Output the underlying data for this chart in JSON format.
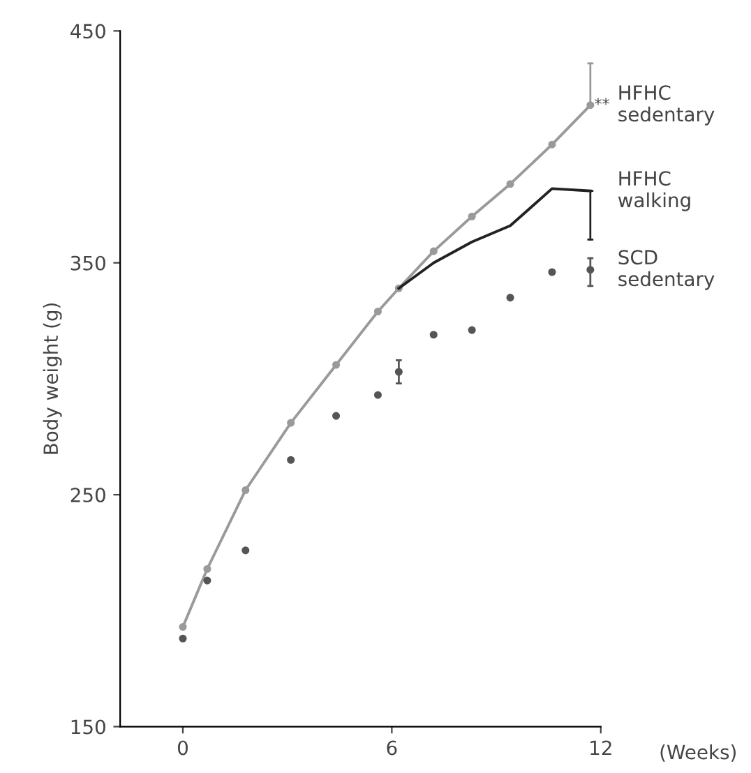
{
  "chart_data": {
    "type": "line",
    "ylabel": "Body weight (g)",
    "xlabel": "(Weeks)",
    "xlim": [
      -1.8,
      12
    ],
    "ylim": [
      150,
      450
    ],
    "xticks": [
      0,
      6,
      12
    ],
    "yticks": [
      150,
      250,
      350,
      450
    ],
    "grid": false,
    "legend": false,
    "series": [
      {
        "name": "HFHC sedentary",
        "marker": "circle",
        "color": "#9a9a9a",
        "x": [
          0,
          0.7,
          1.8,
          3.1,
          4.4,
          5.6,
          6.2,
          7.2,
          8.3,
          9.4,
          10.6,
          11.7
        ],
        "values": [
          193,
          218,
          252,
          281,
          306,
          329,
          339,
          355,
          370,
          384,
          401,
          418
        ],
        "errors": [
          null,
          null,
          null,
          null,
          null,
          null,
          null,
          null,
          null,
          null,
          null,
          [
            418,
            436
          ]
        ]
      },
      {
        "name": "HFHC walking",
        "marker": "none",
        "color": "#222222",
        "x": [
          6.2,
          7.2,
          8.3,
          9.4,
          10.6,
          11.7
        ],
        "values": [
          339,
          350,
          359,
          366,
          382,
          381
        ],
        "errors": [
          null,
          null,
          null,
          null,
          null,
          [
            360,
            381
          ]
        ]
      },
      {
        "name": "SCD sedentary",
        "type": "scatter",
        "marker": "circle",
        "color": "#555555",
        "x": [
          0,
          0.7,
          1.8,
          3.1,
          4.4,
          5.6,
          6.2,
          7.2,
          8.3,
          9.4,
          10.6,
          11.7
        ],
        "values": [
          188,
          213,
          226,
          265,
          284,
          293,
          303,
          319,
          321,
          335,
          346,
          347
        ],
        "errors": [
          null,
          null,
          null,
          null,
          null,
          null,
          [
            298,
            308
          ],
          null,
          null,
          null,
          null,
          [
            340,
            352
          ]
        ]
      }
    ],
    "annotations": [
      {
        "text": "**",
        "x": 11.7,
        "y": 418
      }
    ]
  }
}
